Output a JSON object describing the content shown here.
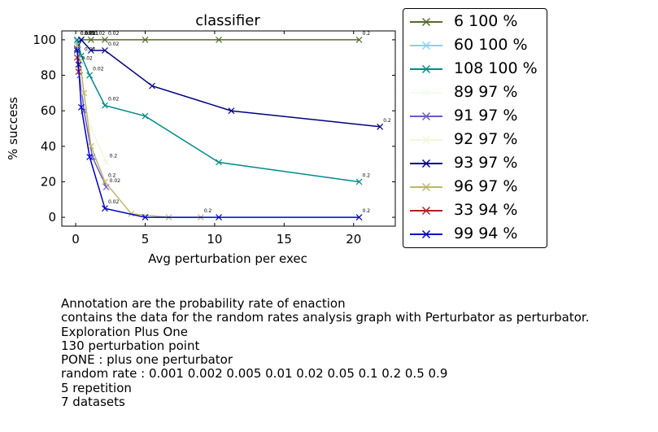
{
  "chart_data": {
    "type": "line",
    "title": "classifier",
    "xlabel": "Avg perturbation per exec",
    "ylabel": "% success",
    "xlim": [
      -1,
      23
    ],
    "ylim": [
      -5,
      105
    ],
    "xticks": [
      0,
      5,
      10,
      15,
      20
    ],
    "yticks": [
      0,
      20,
      40,
      60,
      80,
      100
    ],
    "grid": false,
    "legend_placement": "outside-right",
    "series": [
      {
        "name": "6 100 %",
        "color": "#556b2f",
        "x": [
          0.1,
          0.4,
          1.1,
          2.1,
          5.0,
          10.3,
          20.4
        ],
        "y": [
          100,
          100,
          100,
          100,
          100,
          100,
          100
        ],
        "labels": [
          "0.001",
          "0.01",
          "0.02",
          "0.02",
          "",
          "",
          "0.2"
        ]
      },
      {
        "name": "60 100 %",
        "color": "#87cefa",
        "x": [
          0.1,
          0.2
        ],
        "y": [
          99,
          97
        ],
        "labels": [
          "",
          ""
        ]
      },
      {
        "name": "108 100 %",
        "color": "#008b8b",
        "x": [
          0.1,
          0.4,
          1.0,
          2.1,
          5.0,
          10.3,
          20.4
        ],
        "y": [
          100,
          91,
          80,
          63,
          57,
          31,
          20
        ],
        "labels": [
          "0.005",
          "0.02",
          "0.02",
          "0.02",
          "",
          "",
          "0.2"
        ]
      },
      {
        "name": "89 97 %",
        "color": "#f0fff0",
        "x": [
          0.1,
          0.3,
          0.6
        ],
        "y": [
          97,
          88,
          78
        ],
        "labels": [
          "",
          "",
          ""
        ]
      },
      {
        "name": "91 97 %",
        "color": "#6a5acd",
        "x": [
          0.1,
          0.3,
          0.6,
          1.2,
          2.2
        ],
        "y": [
          97,
          80,
          60,
          34,
          17
        ],
        "labels": [
          "",
          "",
          "",
          "",
          "0.02"
        ]
      },
      {
        "name": "92 97 %",
        "color": "#f5f5dc",
        "x": [
          0.1,
          0.5,
          1.1,
          2.2
        ],
        "y": [
          97,
          70,
          50,
          31
        ],
        "labels": [
          "",
          "",
          "",
          "0.2"
        ]
      },
      {
        "name": "93 97 %",
        "color": "#000080",
        "x": [
          0.1,
          0.4,
          1.1,
          2.1,
          5.5,
          11.2,
          21.9
        ],
        "y": [
          95,
          100,
          94,
          94,
          74,
          60,
          51
        ],
        "labels": [
          "",
          "0.001",
          "",
          "0.02",
          "",
          "",
          "0.2"
        ]
      },
      {
        "name": "96 97 %",
        "color": "#bdb76b",
        "x": [
          0.1,
          0.3,
          0.6,
          1.1,
          2.1,
          4.0,
          6.7,
          9.0
        ],
        "y": [
          97,
          88,
          70,
          40,
          20,
          2,
          0,
          0
        ],
        "labels": [
          "",
          "",
          "",
          "",
          "0.2",
          "",
          "",
          "0.2"
        ]
      },
      {
        "name": "33 94 %",
        "color": "#b22222",
        "x": [
          0.1,
          0.2
        ],
        "y": [
          90,
          82
        ],
        "labels": [
          "",
          ""
        ]
      },
      {
        "name": "99 94 %",
        "color": "#0000cd",
        "x": [
          0.1,
          0.2,
          0.4,
          1.0,
          2.1,
          5.0,
          10.3,
          20.4
        ],
        "y": [
          94,
          86,
          62,
          34,
          5,
          0,
          0,
          0
        ],
        "labels": [
          "",
          "0.02",
          "",
          "",
          "0.02",
          "",
          "",
          "0.2"
        ]
      }
    ]
  },
  "notes": [
    "Annotation are the probability rate of enaction",
    "contains the data for the random rates analysis graph with Perturbator as perturbator.",
    "Exploration Plus One",
    "130 perturbation point",
    "PONE : plus one perturbator",
    "random rate : 0.001 0.002 0.005 0.01 0.02 0.05 0.1 0.2 0.5 0.9",
    "5 repetition",
    "7 datasets"
  ]
}
